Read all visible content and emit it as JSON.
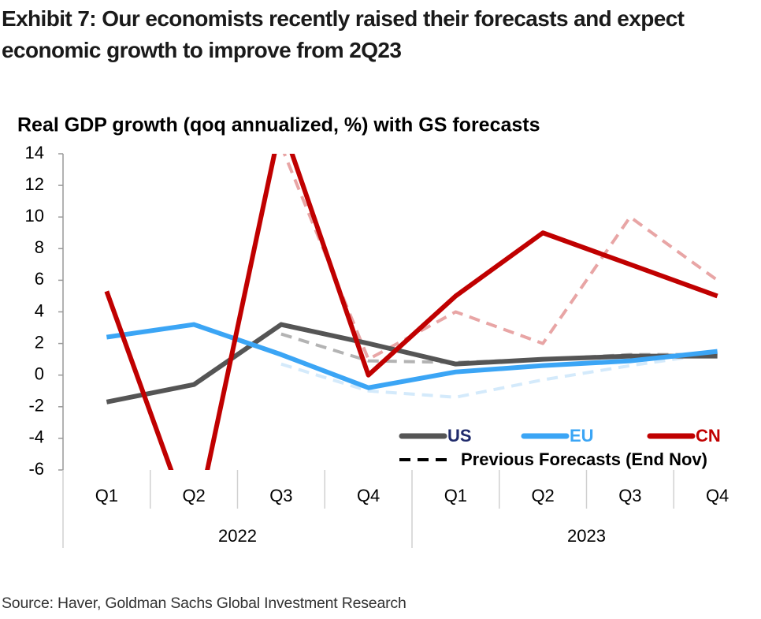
{
  "chart_data": {
    "type": "line",
    "title": "Exhibit 7: Our economists recently raised their forecasts and expect economic growth to improve from 2Q23",
    "subtitle": "Real GDP growth (qoq annualized, %) with GS forecasts",
    "source": "Source: Haver, Goldman Sachs Global Investment Research",
    "groups": [
      {
        "label": "2022",
        "categories": [
          "Q1",
          "Q2",
          "Q3",
          "Q4"
        ]
      },
      {
        "label": "2023",
        "categories": [
          "Q1",
          "Q2",
          "Q3",
          "Q4"
        ]
      }
    ],
    "series": [
      {
        "name": "US",
        "color": "#555555",
        "label_color": "#1f2a6b",
        "values": [
          -1.7,
          -0.6,
          3.2,
          2.0,
          0.7,
          1.0,
          1.2,
          1.2
        ],
        "previous_values": [
          null,
          null,
          2.6,
          0.9,
          0.8,
          1.0,
          1.3,
          1.3
        ],
        "previous_color": "#b3b3b3"
      },
      {
        "name": "EU",
        "color": "#3ba5f5",
        "label_color": "#3ba5f5",
        "values": [
          2.4,
          3.2,
          1.3,
          -0.8,
          0.2,
          0.6,
          0.9,
          1.5
        ],
        "previous_values": [
          null,
          null,
          0.7,
          -1.0,
          -1.4,
          -0.3,
          0.6,
          1.4
        ],
        "previous_color": "#d4eafb"
      },
      {
        "name": "CN",
        "color": "#c00000",
        "label_color": "#c00000",
        "values": [
          5.3,
          -10,
          16,
          0,
          5,
          9,
          7,
          5
        ],
        "previous_values": [
          null,
          null,
          14.5,
          1.0,
          4.0,
          2.0,
          10.0,
          6.0
        ],
        "previous_color": "#e8a5a5"
      }
    ],
    "previous_label": "Previous Forecasts (End Nov)",
    "previous_legend_color": "#000000",
    "ylim": [
      -6,
      14
    ],
    "yticks": [
      -6,
      -4,
      -2,
      0,
      2,
      4,
      6,
      8,
      10,
      12,
      14
    ],
    "grid": false
  }
}
